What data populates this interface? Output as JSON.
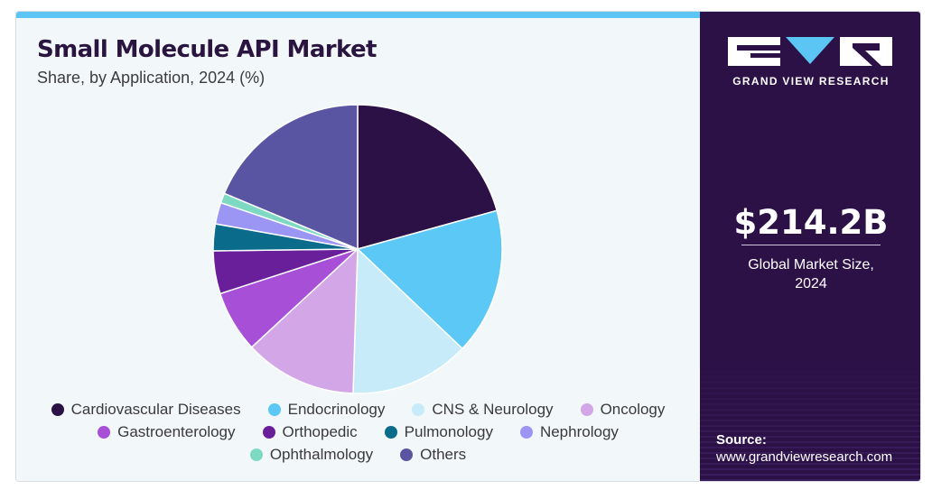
{
  "header": {
    "title": "Small Molecule API Market",
    "subtitle": "Share, by Application, 2024 (%)"
  },
  "chart_data": {
    "type": "pie",
    "title": "Small Molecule API Market",
    "subtitle": "Share, by Application, 2024 (%)",
    "start_angle_deg": 0,
    "direction": "clockwise",
    "legend_position": "bottom",
    "slices": [
      {
        "label": "Cardiovascular Diseases",
        "value": 20.7,
        "color": "#2c1147"
      },
      {
        "label": "Endocrinology",
        "value": 16.4,
        "color": "#5bc8f5"
      },
      {
        "label": "CNS & Neurology",
        "value": 13.4,
        "color": "#c8ebfa"
      },
      {
        "label": "Oncology",
        "value": 12.6,
        "color": "#d3a6e8"
      },
      {
        "label": "Gastroenterology",
        "value": 6.9,
        "color": "#a74fd6"
      },
      {
        "label": "Orthopedic",
        "value": 4.8,
        "color": "#6a1f9a"
      },
      {
        "label": "Pulmonology",
        "value": 3.0,
        "color": "#0a6b8a"
      },
      {
        "label": "Nephrology",
        "value": 2.4,
        "color": "#9b95f3"
      },
      {
        "label": "Ophthalmology",
        "value": 1.1,
        "color": "#7ed9c3"
      },
      {
        "label": "Others",
        "value": 18.7,
        "color": "#5a55a3"
      }
    ]
  },
  "legend_rows": [
    [
      0,
      1,
      2,
      3
    ],
    [
      4,
      5,
      6,
      7
    ],
    [
      8,
      9
    ]
  ],
  "sidebar": {
    "brand": "GRAND VIEW RESEARCH",
    "market_size": "$214.2B",
    "market_size_label_line1": "Global Market Size,",
    "market_size_label_line2": "2024",
    "source_label": "Source:",
    "source_url": "www.grandviewresearch.com"
  }
}
